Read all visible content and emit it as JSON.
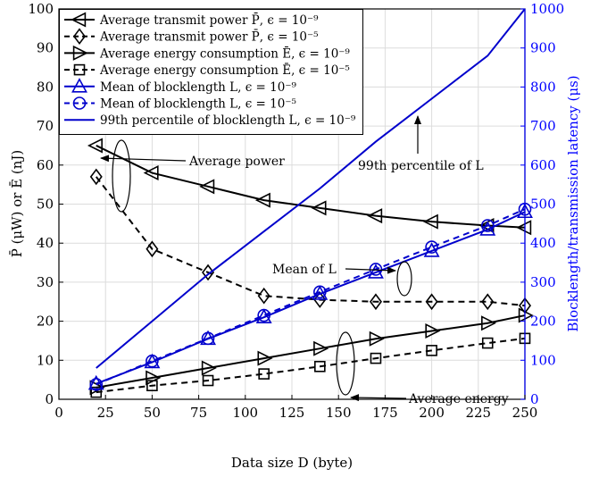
{
  "chart_data": {
    "type": "line",
    "x": [
      20,
      50,
      80,
      110,
      140,
      170,
      200,
      230,
      250
    ],
    "xlabel": "Data size D (byte)",
    "ylabel_left": "P̄ (μW) or Ē (nJ)",
    "ylabel_right": "Blocklength/transmission latency (μs)",
    "xlim": [
      0,
      250
    ],
    "ylim_left": [
      0,
      100
    ],
    "ylim_right": [
      0,
      1000
    ],
    "xticks": [
      "0",
      "25",
      "50",
      "75",
      "100",
      "125",
      "150",
      "175",
      "200",
      "225",
      "250"
    ],
    "yticks_left": [
      "0",
      "10",
      "20",
      "30",
      "40",
      "50",
      "60",
      "70",
      "80",
      "90",
      "100"
    ],
    "yticks_right": [
      "0",
      "100",
      "200",
      "300",
      "400",
      "500",
      "600",
      "700",
      "800",
      "900",
      "1000"
    ],
    "grid": true,
    "legend_position": "top-left",
    "series": [
      {
        "name": "Average transmit power P̄, ϵ = 10⁻⁹",
        "axis": "left",
        "color": "#000000",
        "dash": "solid",
        "marker": "triangle-left",
        "values": [
          65,
          58,
          54.5,
          51,
          49,
          47,
          45.5,
          44.5,
          44
        ]
      },
      {
        "name": "Average transmit power P̄, ϵ = 10⁻⁵",
        "axis": "left",
        "color": "#000000",
        "dash": "dashed",
        "marker": "diamond",
        "values": [
          57,
          38.5,
          32.5,
          26.5,
          25.5,
          25,
          25,
          25,
          24
        ]
      },
      {
        "name": "Average energy consumption Ē, ϵ = 10⁻⁹",
        "axis": "left",
        "color": "#000000",
        "dash": "solid",
        "marker": "triangle-right",
        "values": [
          3,
          5.5,
          8,
          10.5,
          13,
          15.5,
          17.5,
          19.5,
          21.5
        ]
      },
      {
        "name": "Average energy consumption Ē, ϵ = 10⁻⁵",
        "axis": "left",
        "color": "#000000",
        "dash": "dashed",
        "marker": "square",
        "values": [
          1.8,
          3.5,
          4.8,
          6.5,
          8.4,
          10.5,
          12.5,
          14.4,
          15.6
        ]
      },
      {
        "name": "Mean of blocklength L, ϵ = 10⁻⁹",
        "axis": "right",
        "color": "#0000cc",
        "dash": "solid",
        "marker": "triangle-up",
        "values": [
          40,
          95,
          155,
          210,
          270,
          325,
          380,
          435,
          480
        ]
      },
      {
        "name": "Mean of blocklength L, ϵ = 10⁻⁵",
        "axis": "right",
        "color": "#0000cc",
        "dash": "dashed",
        "marker": "circle",
        "values": [
          38,
          98,
          156,
          215,
          275,
          333,
          390,
          445,
          487
        ]
      },
      {
        "name": "99th percentile of blocklength L, ϵ = 10⁻⁹",
        "axis": "right",
        "color": "#0000cc",
        "dash": "solid",
        "marker": "none",
        "values": [
          80,
          200,
          320,
          430,
          540,
          660,
          770,
          880,
          1000
        ]
      }
    ],
    "annotations": [
      "Average power",
      "99th percentile of L",
      "Mean of L",
      "Average energy"
    ]
  }
}
